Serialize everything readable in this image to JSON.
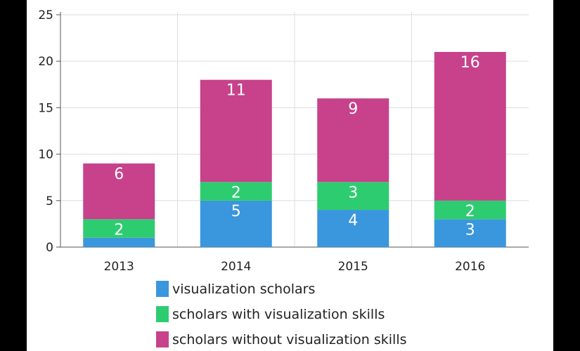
{
  "chart_data": {
    "type": "bar",
    "stacked": true,
    "categories": [
      "2013",
      "2014",
      "2015",
      "2016"
    ],
    "series": [
      {
        "name": "visualization scholars",
        "values": [
          1,
          5,
          4,
          3
        ],
        "color": "#3a96dd",
        "labels": [
          "",
          "5",
          "4",
          "3"
        ]
      },
      {
        "name": "scholars with visualization skills",
        "values": [
          2,
          2,
          3,
          2
        ],
        "color": "#2ecc71",
        "labels": [
          "2",
          "2",
          "3",
          "2"
        ]
      },
      {
        "name": "scholars without visualization skills",
        "values": [
          6,
          11,
          9,
          16
        ],
        "color": "#c7428a",
        "labels": [
          "6",
          "11",
          "9",
          "16"
        ]
      }
    ],
    "ylim": [
      0,
      25
    ],
    "yticks": [
      "0",
      "5",
      "10",
      "15",
      "20",
      "25"
    ],
    "grid": true,
    "legend_position": "bottom",
    "title": "",
    "xlabel": "",
    "ylabel": ""
  }
}
